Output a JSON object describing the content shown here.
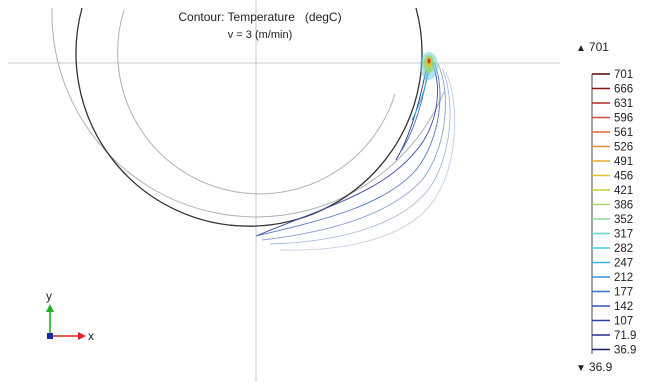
{
  "plot": {
    "title": "Contour: Temperature   (degC)",
    "subtitle": "v = 3 (m/min)"
  },
  "range": {
    "max": "701",
    "min": "36.9"
  },
  "triad": {
    "x_label": "x",
    "y_label": "y",
    "x_color": "#e02020",
    "y_color": "#20b020",
    "origin_color": "#1a2a9a"
  },
  "legend": {
    "levels": [
      {
        "label": "701",
        "color": "#4a0a0a"
      },
      {
        "label": "666",
        "color": "#8a1515"
      },
      {
        "label": "631",
        "color": "#b52525"
      },
      {
        "label": "596",
        "color": "#cc4a3a"
      },
      {
        "label": "561",
        "color": "#d9703d"
      },
      {
        "label": "526",
        "color": "#e0903a"
      },
      {
        "label": "491",
        "color": "#e0ad35"
      },
      {
        "label": "456",
        "color": "#d8c330"
      },
      {
        "label": "421",
        "color": "#c6cf3a"
      },
      {
        "label": "386",
        "color": "#a8d66a"
      },
      {
        "label": "352",
        "color": "#8ed7a0"
      },
      {
        "label": "317",
        "color": "#6cd3c2"
      },
      {
        "label": "282",
        "color": "#4ac8d8"
      },
      {
        "label": "247",
        "color": "#3ab0e0"
      },
      {
        "label": "212",
        "color": "#3a92d8"
      },
      {
        "label": "177",
        "color": "#3a75c8"
      },
      {
        "label": "142",
        "color": "#3457b5"
      },
      {
        "label": "107",
        "color": "#2a3fa0"
      },
      {
        "label": "71.9",
        "color": "#222d8a"
      },
      {
        "label": "36.9",
        "color": "#1a1f70"
      }
    ]
  }
}
